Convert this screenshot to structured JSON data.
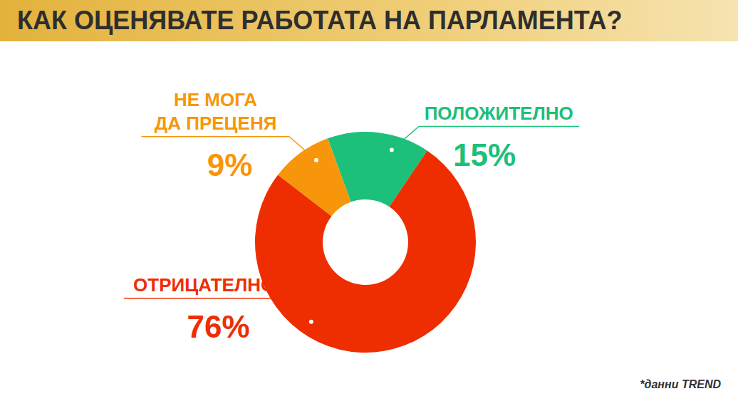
{
  "chart_data": {
    "type": "pie",
    "title": "КАК ОЦЕНЯВАТЕ РАБОТАТА НА ПАРЛАМЕНТА?",
    "categories": [
      "ПОЛОЖИТЕЛНО",
      "ОТРИЦАТЕЛНО",
      "НЕ МОГА ДА ПРЕЦЕНЯ"
    ],
    "values": [
      15,
      76,
      9
    ],
    "value_labels": [
      "15%",
      "76%",
      "9%"
    ],
    "colors": [
      "#1cc07a",
      "#ee2e00",
      "#f7960a"
    ],
    "data_labels": true,
    "annotations": [
      "*данни TREND"
    ]
  }
}
